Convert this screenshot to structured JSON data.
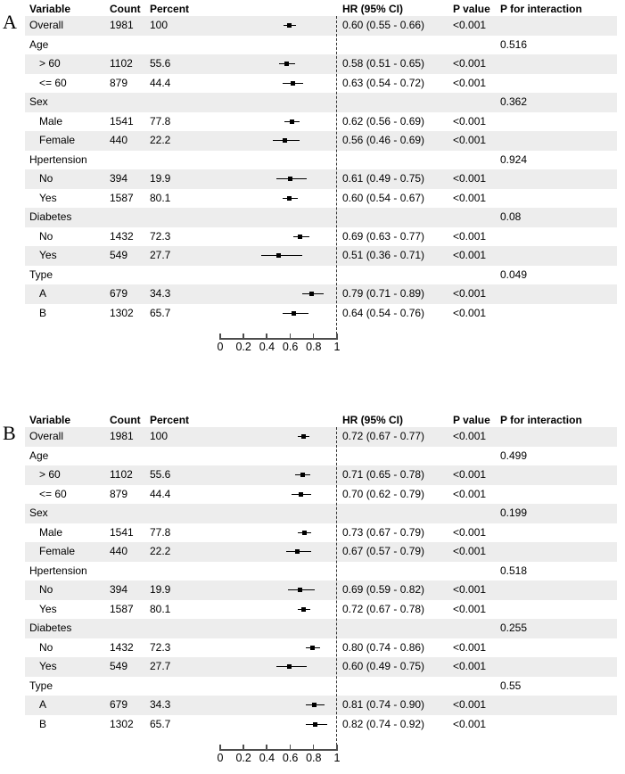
{
  "figure": {
    "background": "#ffffff",
    "stripe_color": "#ededed",
    "axis_color": "#4d4d4d",
    "marker_color": "#000000",
    "refline_color": "#333333"
  },
  "chart_data": [
    {
      "type": "scatter",
      "subtype": "forest-plot",
      "panel": "A",
      "columns": {
        "variable": "Variable",
        "count": "Count",
        "percent": "Percent",
        "hr": "HR (95% CI)",
        "p": "P value",
        "p_interaction": "P for interaction"
      },
      "axis": {
        "min": 0,
        "max": 1,
        "ticks": [
          0,
          0.2,
          0.4,
          0.6,
          0.8,
          1
        ],
        "tick_labels": [
          "0",
          "0.2",
          "0.4",
          "0.6",
          "0.8",
          "1"
        ],
        "refline": 1,
        "grid": false
      },
      "rows": [
        {
          "label": "Overall",
          "indent": false,
          "count": "1981",
          "percent": "100",
          "hr": 0.6,
          "lo": 0.55,
          "hi": 0.66,
          "hr_text": "0.60 (0.55 - 0.66)",
          "p": "<0.001",
          "p_interaction": "",
          "shaded": true
        },
        {
          "label": "Age",
          "indent": false,
          "count": "",
          "percent": "",
          "hr": null,
          "hr_text": "",
          "p": "",
          "p_interaction": "0.516",
          "shaded": false
        },
        {
          "label": "> 60",
          "indent": true,
          "count": "1102",
          "percent": "55.6",
          "hr": 0.58,
          "lo": 0.51,
          "hi": 0.65,
          "hr_text": "0.58 (0.51 - 0.65)",
          "p": "<0.001",
          "p_interaction": "",
          "shaded": true
        },
        {
          "label": "<= 60",
          "indent": true,
          "count": "879",
          "percent": "44.4",
          "hr": 0.63,
          "lo": 0.54,
          "hi": 0.72,
          "hr_text": "0.63 (0.54 - 0.72)",
          "p": "<0.001",
          "p_interaction": "",
          "shaded": false
        },
        {
          "label": "Sex",
          "indent": false,
          "count": "",
          "percent": "",
          "hr": null,
          "hr_text": "",
          "p": "",
          "p_interaction": "0.362",
          "shaded": true
        },
        {
          "label": "Male",
          "indent": true,
          "count": "1541",
          "percent": "77.8",
          "hr": 0.62,
          "lo": 0.56,
          "hi": 0.69,
          "hr_text": "0.62 (0.56 - 0.69)",
          "p": "<0.001",
          "p_interaction": "",
          "shaded": false
        },
        {
          "label": "Female",
          "indent": true,
          "count": "440",
          "percent": "22.2",
          "hr": 0.56,
          "lo": 0.46,
          "hi": 0.69,
          "hr_text": "0.56 (0.46 - 0.69)",
          "p": "<0.001",
          "p_interaction": "",
          "shaded": true
        },
        {
          "label": "Hpertension",
          "indent": false,
          "count": "",
          "percent": "",
          "hr": null,
          "hr_text": "",
          "p": "",
          "p_interaction": "0.924",
          "shaded": false
        },
        {
          "label": "No",
          "indent": true,
          "count": "394",
          "percent": "19.9",
          "hr": 0.61,
          "lo": 0.49,
          "hi": 0.75,
          "hr_text": "0.61 (0.49 - 0.75)",
          "p": "<0.001",
          "p_interaction": "",
          "shaded": true
        },
        {
          "label": "Yes",
          "indent": true,
          "count": "1587",
          "percent": "80.1",
          "hr": 0.6,
          "lo": 0.54,
          "hi": 0.67,
          "hr_text": "0.60 (0.54 - 0.67)",
          "p": "<0.001",
          "p_interaction": "",
          "shaded": false
        },
        {
          "label": "Diabetes",
          "indent": false,
          "count": "",
          "percent": "",
          "hr": null,
          "hr_text": "",
          "p": "",
          "p_interaction": "0.08",
          "shaded": true
        },
        {
          "label": "No",
          "indent": true,
          "count": "1432",
          "percent": "72.3",
          "hr": 0.69,
          "lo": 0.63,
          "hi": 0.77,
          "hr_text": "0.69 (0.63 - 0.77)",
          "p": "<0.001",
          "p_interaction": "",
          "shaded": false
        },
        {
          "label": "Yes",
          "indent": true,
          "count": "549",
          "percent": "27.7",
          "hr": 0.51,
          "lo": 0.36,
          "hi": 0.71,
          "hr_text": "0.51 (0.36 - 0.71)",
          "p": "<0.001",
          "p_interaction": "",
          "shaded": true
        },
        {
          "label": "Type",
          "indent": false,
          "count": "",
          "percent": "",
          "hr": null,
          "hr_text": "",
          "p": "",
          "p_interaction": "0.049",
          "shaded": false
        },
        {
          "label": "A",
          "indent": true,
          "count": "679",
          "percent": "34.3",
          "hr": 0.79,
          "lo": 0.71,
          "hi": 0.89,
          "hr_text": "0.79 (0.71 - 0.89)",
          "p": "<0.001",
          "p_interaction": "",
          "shaded": true
        },
        {
          "label": "B",
          "indent": true,
          "count": "1302",
          "percent": "65.7",
          "hr": 0.64,
          "lo": 0.54,
          "hi": 0.76,
          "hr_text": "0.64 (0.54 - 0.76)",
          "p": "<0.001",
          "p_interaction": "",
          "shaded": false
        }
      ]
    },
    {
      "type": "scatter",
      "subtype": "forest-plot",
      "panel": "B",
      "columns": {
        "variable": "Variable",
        "count": "Count",
        "percent": "Percent",
        "hr": "HR (95% CI)",
        "p": "P value",
        "p_interaction": "P for interaction"
      },
      "axis": {
        "min": 0,
        "max": 1,
        "ticks": [
          0,
          0.2,
          0.4,
          0.6,
          0.8,
          1
        ],
        "tick_labels": [
          "0",
          "0.2",
          "0.4",
          "0.6",
          "0.8",
          "1"
        ],
        "refline": 1,
        "grid": false
      },
      "rows": [
        {
          "label": "Overall",
          "indent": false,
          "count": "1981",
          "percent": "100",
          "hr": 0.72,
          "lo": 0.67,
          "hi": 0.77,
          "hr_text": "0.72 (0.67 - 0.77)",
          "p": "<0.001",
          "p_interaction": "",
          "shaded": true
        },
        {
          "label": "Age",
          "indent": false,
          "count": "",
          "percent": "",
          "hr": null,
          "hr_text": "",
          "p": "",
          "p_interaction": "0.499",
          "shaded": false
        },
        {
          "label": "> 60",
          "indent": true,
          "count": "1102",
          "percent": "55.6",
          "hr": 0.71,
          "lo": 0.65,
          "hi": 0.78,
          "hr_text": "0.71 (0.65 - 0.78)",
          "p": "<0.001",
          "p_interaction": "",
          "shaded": true
        },
        {
          "label": "<= 60",
          "indent": true,
          "count": "879",
          "percent": "44.4",
          "hr": 0.7,
          "lo": 0.62,
          "hi": 0.79,
          "hr_text": "0.70 (0.62 - 0.79)",
          "p": "<0.001",
          "p_interaction": "",
          "shaded": false
        },
        {
          "label": "Sex",
          "indent": false,
          "count": "",
          "percent": "",
          "hr": null,
          "hr_text": "",
          "p": "",
          "p_interaction": "0.199",
          "shaded": true
        },
        {
          "label": "Male",
          "indent": true,
          "count": "1541",
          "percent": "77.8",
          "hr": 0.73,
          "lo": 0.67,
          "hi": 0.79,
          "hr_text": "0.73 (0.67 - 0.79)",
          "p": "<0.001",
          "p_interaction": "",
          "shaded": false
        },
        {
          "label": "Female",
          "indent": true,
          "count": "440",
          "percent": "22.2",
          "hr": 0.67,
          "lo": 0.57,
          "hi": 0.79,
          "hr_text": "0.67 (0.57 - 0.79)",
          "p": "<0.001",
          "p_interaction": "",
          "shaded": true
        },
        {
          "label": "Hpertension",
          "indent": false,
          "count": "",
          "percent": "",
          "hr": null,
          "hr_text": "",
          "p": "",
          "p_interaction": "0.518",
          "shaded": false
        },
        {
          "label": "No",
          "indent": true,
          "count": "394",
          "percent": "19.9",
          "hr": 0.69,
          "lo": 0.59,
          "hi": 0.82,
          "hr_text": "0.69 (0.59 - 0.82)",
          "p": "<0.001",
          "p_interaction": "",
          "shaded": true
        },
        {
          "label": "Yes",
          "indent": true,
          "count": "1587",
          "percent": "80.1",
          "hr": 0.72,
          "lo": 0.67,
          "hi": 0.78,
          "hr_text": "0.72 (0.67 - 0.78)",
          "p": "<0.001",
          "p_interaction": "",
          "shaded": false
        },
        {
          "label": "Diabetes",
          "indent": false,
          "count": "",
          "percent": "",
          "hr": null,
          "hr_text": "",
          "p": "",
          "p_interaction": "0.255",
          "shaded": true
        },
        {
          "label": "No",
          "indent": true,
          "count": "1432",
          "percent": "72.3",
          "hr": 0.8,
          "lo": 0.74,
          "hi": 0.86,
          "hr_text": "0.80 (0.74 - 0.86)",
          "p": "<0.001",
          "p_interaction": "",
          "shaded": false
        },
        {
          "label": "Yes",
          "indent": true,
          "count": "549",
          "percent": "27.7",
          "hr": 0.6,
          "lo": 0.49,
          "hi": 0.75,
          "hr_text": "0.60 (0.49 - 0.75)",
          "p": "<0.001",
          "p_interaction": "",
          "shaded": true
        },
        {
          "label": "Type",
          "indent": false,
          "count": "",
          "percent": "",
          "hr": null,
          "hr_text": "",
          "p": "",
          "p_interaction": "0.55",
          "shaded": false
        },
        {
          "label": "A",
          "indent": true,
          "count": "679",
          "percent": "34.3",
          "hr": 0.81,
          "lo": 0.74,
          "hi": 0.9,
          "hr_text": "0.81 (0.74 - 0.90)",
          "p": "<0.001",
          "p_interaction": "",
          "shaded": true
        },
        {
          "label": "B",
          "indent": true,
          "count": "1302",
          "percent": "65.7",
          "hr": 0.82,
          "lo": 0.74,
          "hi": 0.92,
          "hr_text": "0.82 (0.74 - 0.92)",
          "p": "<0.001",
          "p_interaction": "",
          "shaded": false
        }
      ]
    }
  ]
}
